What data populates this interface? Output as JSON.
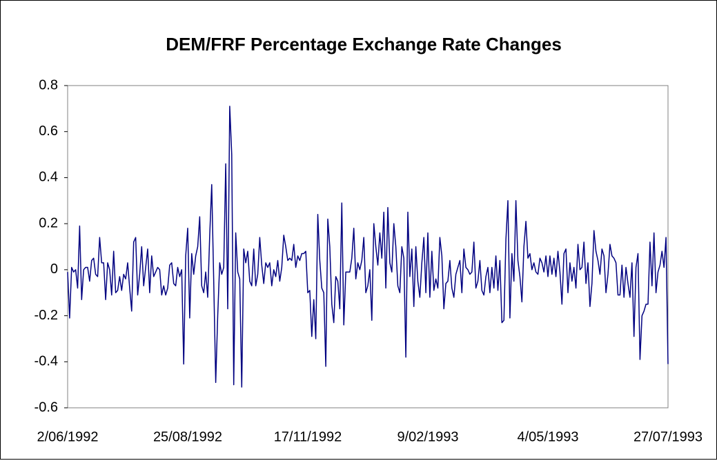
{
  "chart_data": {
    "type": "line",
    "title": "DEM/FRF Percentage Exchange Rate Changes",
    "categories": [
      "2/06/1992",
      null,
      null,
      null,
      null,
      null,
      null,
      null,
      null,
      null,
      null,
      null,
      null,
      null,
      null,
      null,
      null,
      null,
      null,
      null,
      null,
      null,
      null,
      null,
      null,
      null,
      null,
      null,
      null,
      null,
      null,
      null,
      null,
      null,
      null,
      null,
      null,
      null,
      null,
      null,
      null,
      null,
      null,
      null,
      null,
      null,
      null,
      null,
      null,
      null,
      null,
      null,
      null,
      null,
      null,
      null,
      null,
      null,
      null,
      null,
      "25/08/1992",
      null,
      null,
      null,
      null,
      null,
      null,
      null,
      null,
      null,
      null,
      null,
      null,
      null,
      null,
      null,
      null,
      null,
      null,
      null,
      null,
      null,
      null,
      null,
      null,
      null,
      null,
      null,
      null,
      null,
      null,
      null,
      null,
      null,
      null,
      null,
      null,
      null,
      null,
      null,
      null,
      null,
      null,
      null,
      null,
      null,
      null,
      null,
      null,
      null,
      null,
      null,
      null,
      null,
      null,
      null,
      null,
      null,
      null,
      null,
      "17/11/1992",
      null,
      null,
      null,
      null,
      null,
      null,
      null,
      null,
      null,
      null,
      null,
      null,
      null,
      null,
      null,
      null,
      null,
      null,
      null,
      null,
      null,
      null,
      null,
      null,
      null,
      null,
      null,
      null,
      null,
      null,
      null,
      null,
      null,
      null,
      null,
      null,
      null,
      null,
      null,
      null,
      null,
      null,
      null,
      null,
      null,
      null,
      null,
      null,
      null,
      null,
      null,
      null,
      null,
      null,
      null,
      null,
      null,
      null,
      null,
      "9/02/1993",
      null,
      null,
      null,
      null,
      null,
      null,
      null,
      null,
      null,
      null,
      null,
      null,
      null,
      null,
      null,
      null,
      null,
      null,
      null,
      null,
      null,
      null,
      null,
      null,
      null,
      null,
      null,
      null,
      null,
      null,
      null,
      null,
      null,
      null,
      null,
      null,
      null,
      null,
      null,
      null,
      null,
      null,
      null,
      null,
      null,
      null,
      null,
      null,
      null,
      null,
      null,
      null,
      null,
      null,
      null,
      null,
      null,
      null,
      null,
      "4/05/1993",
      null,
      null,
      null,
      null,
      null,
      null,
      null,
      null,
      null,
      null,
      null,
      null,
      null,
      null,
      null,
      null,
      null,
      null,
      null,
      null,
      null,
      null,
      null,
      null,
      null,
      null,
      null,
      null,
      null,
      null,
      null,
      null,
      null,
      null,
      null,
      null,
      null,
      null,
      null,
      null,
      null,
      null,
      null,
      null,
      null,
      null,
      null,
      null,
      null,
      null,
      null,
      null,
      null,
      null,
      null,
      null,
      null,
      null,
      null,
      "27/07/1993"
    ],
    "values": [
      -0.01,
      -0.21,
      0.01,
      -0.01,
      0,
      -0.08,
      0.19,
      -0.13,
      0,
      0.01,
      0.01,
      -0.05,
      0.04,
      0.05,
      -0.02,
      -0.03,
      0.14,
      0.03,
      0.03,
      -0.13,
      0.03,
      0,
      -0.11,
      0.08,
      -0.1,
      -0.09,
      -0.03,
      -0.09,
      -0.02,
      -0.04,
      0.03,
      -0.08,
      -0.18,
      0.12,
      0.14,
      -0.11,
      -0.02,
      0.1,
      -0.07,
      0.01,
      0.09,
      -0.1,
      0.06,
      -0.03,
      -0.01,
      0.01,
      0,
      -0.11,
      -0.07,
      -0.11,
      -0.08,
      0.02,
      0.03,
      -0.06,
      -0.07,
      0.01,
      -0.03,
      0,
      -0.41,
      0.06,
      0.18,
      -0.21,
      0.07,
      -0.02,
      0.06,
      0.1,
      0.23,
      -0.07,
      -0.1,
      -0.01,
      -0.12,
      0.15,
      0.37,
      -0.05,
      -0.49,
      -0.2,
      0.03,
      -0.02,
      0.01,
      0.46,
      -0.17,
      0.71,
      0.5,
      -0.5,
      0.16,
      -0.01,
      -0.04,
      -0.51,
      0.09,
      0.03,
      0.08,
      -0.05,
      -0.07,
      0.09,
      -0.07,
      -0.02,
      0.14,
      0.02,
      -0.06,
      0.03,
      0.01,
      0.03,
      -0.07,
      0,
      -0.03,
      0.04,
      -0.05,
      0.01,
      0.15,
      0.1,
      0.04,
      0.05,
      0.04,
      0.11,
      0.01,
      0.06,
      0.04,
      0.07,
      0.07,
      0.08,
      -0.1,
      -0.09,
      -0.29,
      -0.13,
      -0.3,
      0.24,
      0.04,
      -0.08,
      -0.1,
      -0.42,
      0.22,
      0.1,
      -0.15,
      -0.23,
      -0.03,
      -0.05,
      -0.17,
      0.29,
      -0.24,
      -0.01,
      -0.01,
      -0.01,
      0.05,
      0.18,
      -0.04,
      0.03,
      0,
      0.04,
      0.14,
      -0.1,
      -0.07,
      0,
      -0.22,
      0.2,
      0.1,
      0.02,
      0.16,
      0.05,
      0.25,
      -0.08,
      0.27,
      0.03,
      -0.01,
      0.2,
      0.1,
      -0.07,
      -0.1,
      0.1,
      0.05,
      -0.38,
      0.25,
      -0.03,
      0.09,
      -0.16,
      0.1,
      -0.05,
      -0.12,
      0.03,
      0.14,
      -0.1,
      0.16,
      -0.12,
      0.08,
      -0.09,
      -0.04,
      -0.08,
      0.14,
      0.06,
      -0.17,
      -0.06,
      -0.05,
      0.04,
      -0.08,
      -0.12,
      -0.02,
      0.01,
      0.04,
      -0.1,
      0.09,
      0.01,
      0,
      -0.02,
      -0.01,
      0.12,
      -0.08,
      -0.05,
      0.04,
      -0.09,
      -0.11,
      -0.03,
      0.01,
      -0.1,
      0.01,
      -0.08,
      0.06,
      -0.09,
      0.04,
      -0.23,
      -0.22,
      0.13,
      0.3,
      -0.21,
      0.07,
      -0.05,
      0.3,
      0.04,
      -0.03,
      -0.14,
      0.1,
      0.21,
      0.05,
      0.07,
      0,
      0.03,
      -0.01,
      -0.02,
      0.05,
      0.03,
      -0.01,
      0.06,
      -0.03,
      0.06,
      -0.02,
      0.05,
      -0.03,
      0.08,
      -0.01,
      -0.15,
      0.07,
      0.09,
      -0.1,
      0.03,
      -0.05,
      0.01,
      -0.08,
      0.11,
      0,
      0.01,
      0.12,
      -0.06,
      0.03,
      -0.16,
      -0.06,
      0.17,
      0.08,
      0.04,
      -0.02,
      0.09,
      0.06,
      -0.1,
      -0.02,
      0.11,
      0.06,
      0.05,
      0.03,
      -0.11,
      -0.11,
      0.02,
      -0.12,
      0.01,
      -0.06,
      -0.12,
      0.03,
      -0.29,
      0.01,
      0.07,
      -0.39,
      -0.2,
      -0.18,
      -0.15,
      -0.15,
      0.12,
      -0.07,
      0.16,
      -0.1,
      -0.01,
      0.02,
      0.08,
      0.01,
      0.14,
      -0.41
    ],
    "color": "#000080",
    "ylim": [
      -0.6,
      0.8
    ],
    "yticks": [
      -0.6,
      -0.4,
      -0.2,
      0,
      0.2,
      0.4,
      0.6,
      0.8
    ],
    "grid": false
  }
}
